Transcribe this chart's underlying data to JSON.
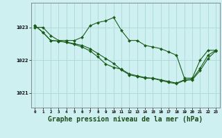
{
  "background_color": "#cff0f0",
  "grid_color": "#aad8d8",
  "line_color": "#1a5c1a",
  "marker_color": "#1a5c1a",
  "xlabel": "Graphe pression niveau de la mer (hPa)",
  "xlabel_fontsize": 7.0,
  "ylabel_ticks": [
    1021,
    1022,
    1023
  ],
  "xlim": [
    -0.5,
    23.5
  ],
  "ylim": [
    1020.55,
    1023.75
  ],
  "series1": [
    1023.0,
    1023.0,
    1022.75,
    1022.6,
    1022.6,
    1022.6,
    1022.7,
    1023.05,
    1023.15,
    1023.2,
    1023.3,
    1022.9,
    1022.6,
    1022.6,
    1022.45,
    1022.4,
    1022.35,
    1022.25,
    1022.15,
    1021.45,
    1021.45,
    1022.0,
    1022.3,
    1022.3
  ],
  "series2": [
    1023.05,
    1022.85,
    1022.6,
    1022.58,
    1022.55,
    1022.5,
    1022.45,
    1022.35,
    1022.2,
    1022.05,
    1021.9,
    1021.7,
    1021.55,
    1021.5,
    1021.45,
    1021.45,
    1021.4,
    1021.35,
    1021.3,
    1021.4,
    1021.42,
    1021.75,
    1022.15,
    1022.3
  ],
  "series3": [
    1023.05,
    1022.85,
    1022.6,
    1022.58,
    1022.54,
    1022.48,
    1022.4,
    1022.28,
    1022.1,
    1021.88,
    1021.78,
    1021.72,
    1021.58,
    1021.52,
    1021.47,
    1021.44,
    1021.38,
    1021.32,
    1021.28,
    1021.38,
    1021.4,
    1021.68,
    1022.05,
    1022.28
  ],
  "xtick_labels": [
    "0",
    "1",
    "2",
    "3",
    "4",
    "5",
    "6",
    "7",
    "8",
    "9",
    "10",
    "11",
    "12",
    "13",
    "14",
    "15",
    "16",
    "17",
    "18",
    "19",
    "20",
    "21",
    "22",
    "23"
  ]
}
